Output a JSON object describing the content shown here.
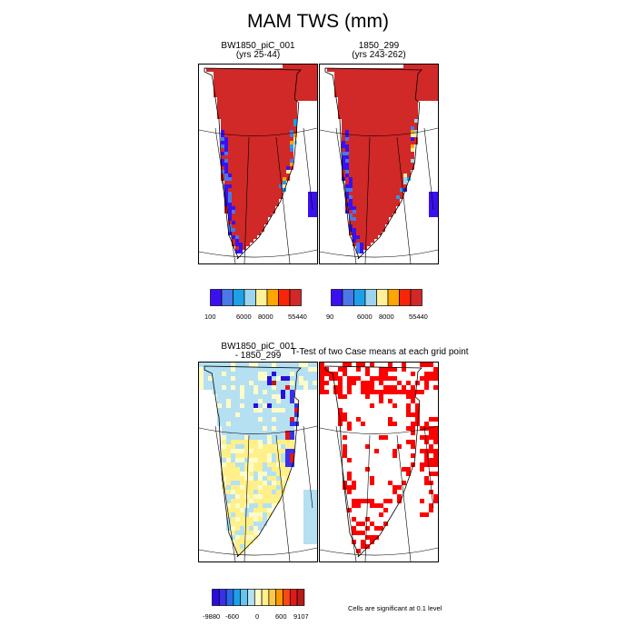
{
  "title": "MAM TWS (mm)",
  "panels": [
    {
      "id": "p1",
      "title_line1": "BW1850_piC_001",
      "title_line2": "(yrs 25-44)"
    },
    {
      "id": "p2",
      "title_line1": "1850_299",
      "title_line2": "(yrs 243-262)"
    },
    {
      "id": "p3",
      "title_line1": "BW1850_piC_001",
      "title_line2": "- 1850_299"
    },
    {
      "id": "p4",
      "title_line1": "T-Test of two Case means at each grid point",
      "title_line2": ""
    }
  ],
  "legends": {
    "top_left": {
      "colors": [
        "#3a10f0",
        "#4a78e8",
        "#1ea0e8",
        "#9cd4ee",
        "#fff09a",
        "#fda500",
        "#f8250a",
        "#d12828"
      ],
      "labels": [
        "100",
        "6000",
        "8000",
        "55440"
      ]
    },
    "top_right": {
      "colors": [
        "#3a10f0",
        "#4a78e8",
        "#1ea0e8",
        "#9cd4ee",
        "#fff09a",
        "#fda500",
        "#f8250a",
        "#d12828"
      ],
      "labels": [
        "90",
        "6000",
        "8000",
        "55440"
      ]
    },
    "bottom": {
      "colors": [
        "#2a0ce0",
        "#3a30e8",
        "#2a68e8",
        "#1ea0e8",
        "#64c4ee",
        "#b4e0f2",
        "#fffcc8",
        "#fff08a",
        "#fdc84a",
        "#fd9800",
        "#f84a10",
        "#e01818",
        "#b81a1a"
      ],
      "labels": [
        "-9880",
        "-600",
        "0",
        "600",
        "9107"
      ]
    }
  },
  "note": "Cells are significant at 0.1 level",
  "chart_data": [
    {
      "type": "heatmap",
      "title": "BW1850_piC_001",
      "subtitle": "(yrs 25-44)",
      "colorbar_ticks": [
        "100",
        "6000",
        "8000",
        "55440"
      ]
    },
    {
      "type": "heatmap",
      "title": "1850_299",
      "subtitle": "(yrs 243-262)",
      "colorbar_ticks": [
        "90",
        "6000",
        "8000",
        "55440"
      ]
    },
    {
      "type": "heatmap",
      "title": "BW1850_piC_001 - 1850_299",
      "colorbar_ticks": [
        "-9880",
        "-600",
        "0",
        "600",
        "9107"
      ]
    },
    {
      "type": "heatmap",
      "title": "T-Test of two Case means at each grid point",
      "annotation": "Cells are significant at 0.1 level"
    }
  ]
}
